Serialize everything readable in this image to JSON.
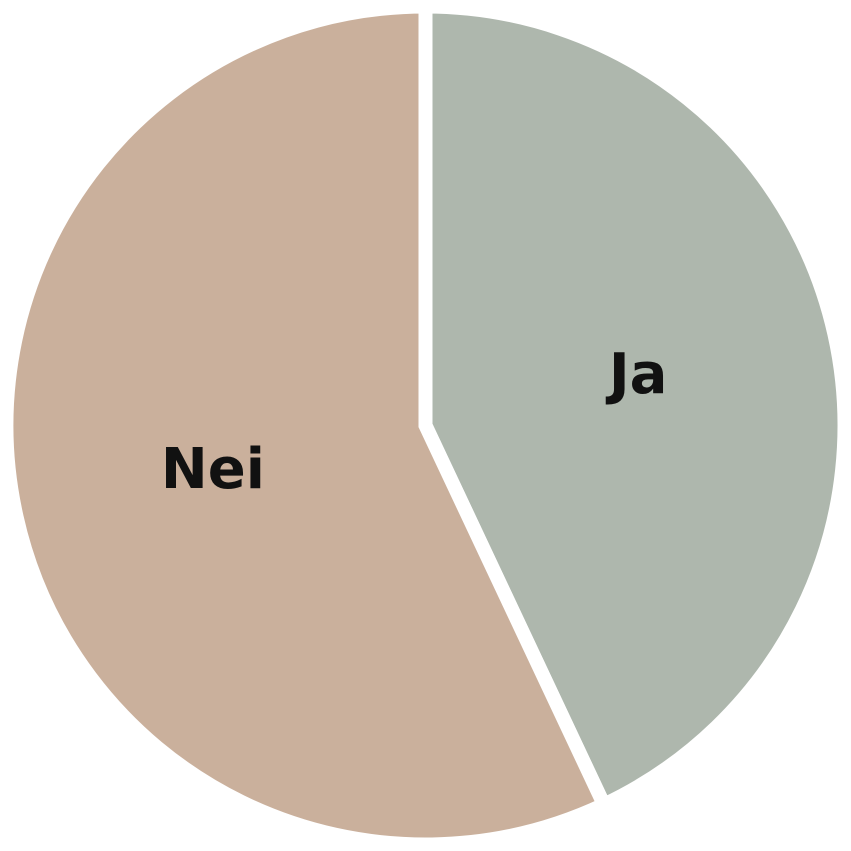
{
  "chart_data": {
    "type": "pie",
    "title": "",
    "start": "top",
    "direction": "clockwise",
    "slices": [
      {
        "label": "Ja",
        "value": 43,
        "color": "#aeb7ad"
      },
      {
        "label": "Nei",
        "value": 57,
        "color": "#cab09c"
      }
    ]
  }
}
